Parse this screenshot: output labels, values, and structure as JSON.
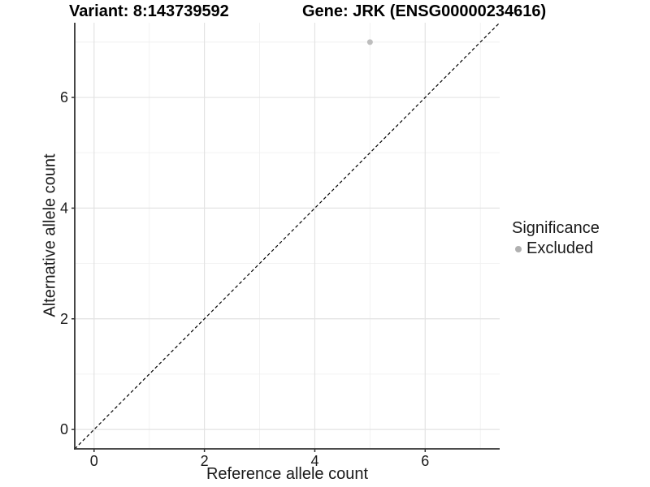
{
  "chart_data": {
    "type": "scatter",
    "title_left": "Variant: 8:143739592",
    "title_right": "Gene: JRK (ENSG00000234616)",
    "xlabel": "Reference allele count",
    "ylabel": "Alternative allele count",
    "xlim": [
      -0.35,
      7.35
    ],
    "ylim": [
      -0.35,
      7.35
    ],
    "x_major_ticks": [
      0,
      2,
      4,
      6
    ],
    "y_major_ticks": [
      0,
      2,
      4,
      6
    ],
    "x_minor_ticks": [
      1,
      3,
      5,
      7
    ],
    "y_minor_ticks": [
      1,
      3,
      5,
      7
    ],
    "grid": true,
    "reference_line": {
      "type": "identity",
      "style": "dashed",
      "color": "#000000"
    },
    "series": [
      {
        "name": "Excluded",
        "color": "#bebebe",
        "points": [
          {
            "x": 5,
            "y": 7
          }
        ]
      }
    ],
    "legend": {
      "title": "Significance",
      "position": "right",
      "items": [
        {
          "label": "Excluded",
          "color": "#b0b0b0"
        }
      ]
    },
    "colors": {
      "point": "#bebebe",
      "grid_major": "#e3e3e3",
      "grid_minor": "#f0f0f0",
      "axis_line": "#333333",
      "tick_label": "#1a1a1a",
      "background": "#ffffff"
    }
  }
}
